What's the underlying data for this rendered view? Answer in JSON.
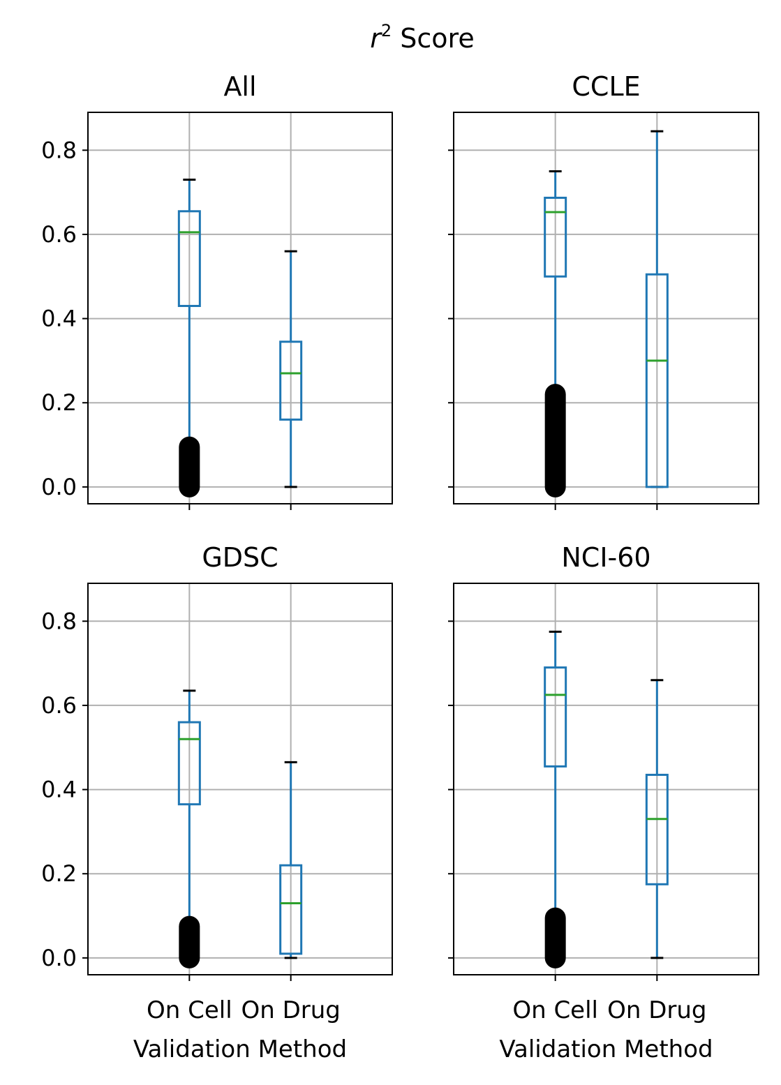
{
  "suptitle_var": "r",
  "suptitle_sup": "2",
  "suptitle_rest": " Score",
  "colors": {
    "box": "#1f77b4",
    "median": "#2ca02c",
    "flier": "#000000",
    "grid": "#b0b0b0"
  },
  "chart_data": [
    {
      "type": "box",
      "title": "All",
      "xlabel": "",
      "ylabel": "",
      "categories": [
        "On Cell",
        "On Drug"
      ],
      "ylim": [
        -0.04,
        0.89
      ],
      "yticks": [
        0.0,
        0.2,
        0.4,
        0.6,
        0.8
      ],
      "ytick_labels": [
        "0.0",
        "0.2",
        "0.4",
        "0.6",
        "0.8"
      ],
      "grid": true,
      "boxes": [
        {
          "category": "On Cell",
          "whisker_low": 0.1,
          "q1": 0.43,
          "median": 0.605,
          "q3": 0.655,
          "whisker_high": 0.73,
          "fliers_low": 0.0,
          "fliers_high": 0.095
        },
        {
          "category": "On Drug",
          "whisker_low": 0.0,
          "q1": 0.16,
          "median": 0.27,
          "q3": 0.345,
          "whisker_high": 0.56,
          "fliers_low": null,
          "fliers_high": null
        }
      ]
    },
    {
      "type": "box",
      "title": "CCLE",
      "xlabel": "",
      "ylabel": "",
      "categories": [
        "On Cell",
        "On Drug"
      ],
      "ylim": [
        -0.04,
        0.89
      ],
      "yticks": [
        0.0,
        0.2,
        0.4,
        0.6,
        0.8
      ],
      "ytick_labels": [
        "0.0",
        "0.2",
        "0.4",
        "0.6",
        "0.8"
      ],
      "grid": true,
      "boxes": [
        {
          "category": "On Cell",
          "whisker_low": 0.23,
          "q1": 0.5,
          "median": 0.653,
          "q3": 0.687,
          "whisker_high": 0.75,
          "fliers_low": 0.0,
          "fliers_high": 0.22
        },
        {
          "category": "On Drug",
          "whisker_low": 0.0,
          "q1": 0.0,
          "median": 0.3,
          "q3": 0.505,
          "whisker_high": 0.845,
          "fliers_low": null,
          "fliers_high": null
        }
      ]
    },
    {
      "type": "box",
      "title": "GDSC",
      "xlabel": "Validation Method",
      "ylabel": "",
      "categories": [
        "On Cell",
        "On Drug"
      ],
      "ylim": [
        -0.04,
        0.89
      ],
      "yticks": [
        0.0,
        0.2,
        0.4,
        0.6,
        0.8
      ],
      "ytick_labels": [
        "0.0",
        "0.2",
        "0.4",
        "0.6",
        "0.8"
      ],
      "grid": true,
      "boxes": [
        {
          "category": "On Cell",
          "whisker_low": 0.085,
          "q1": 0.365,
          "median": 0.52,
          "q3": 0.56,
          "whisker_high": 0.635,
          "fliers_low": 0.0,
          "fliers_high": 0.075
        },
        {
          "category": "On Drug",
          "whisker_low": 0.0,
          "q1": 0.01,
          "median": 0.13,
          "q3": 0.22,
          "whisker_high": 0.465,
          "fliers_low": null,
          "fliers_high": null
        }
      ]
    },
    {
      "type": "box",
      "title": "NCI-60",
      "xlabel": "Validation Method",
      "ylabel": "",
      "categories": [
        "On Cell",
        "On Drug"
      ],
      "ylim": [
        -0.04,
        0.89
      ],
      "yticks": [
        0.0,
        0.2,
        0.4,
        0.6,
        0.8
      ],
      "ytick_labels": [
        "0.0",
        "0.2",
        "0.4",
        "0.6",
        "0.8"
      ],
      "grid": true,
      "boxes": [
        {
          "category": "On Cell",
          "whisker_low": 0.1,
          "q1": 0.455,
          "median": 0.625,
          "q3": 0.69,
          "whisker_high": 0.775,
          "fliers_low": 0.0,
          "fliers_high": 0.095
        },
        {
          "category": "On Drug",
          "whisker_low": 0.0,
          "q1": 0.175,
          "median": 0.33,
          "q3": 0.435,
          "whisker_high": 0.66,
          "fliers_low": null,
          "fliers_high": null
        }
      ]
    }
  ]
}
